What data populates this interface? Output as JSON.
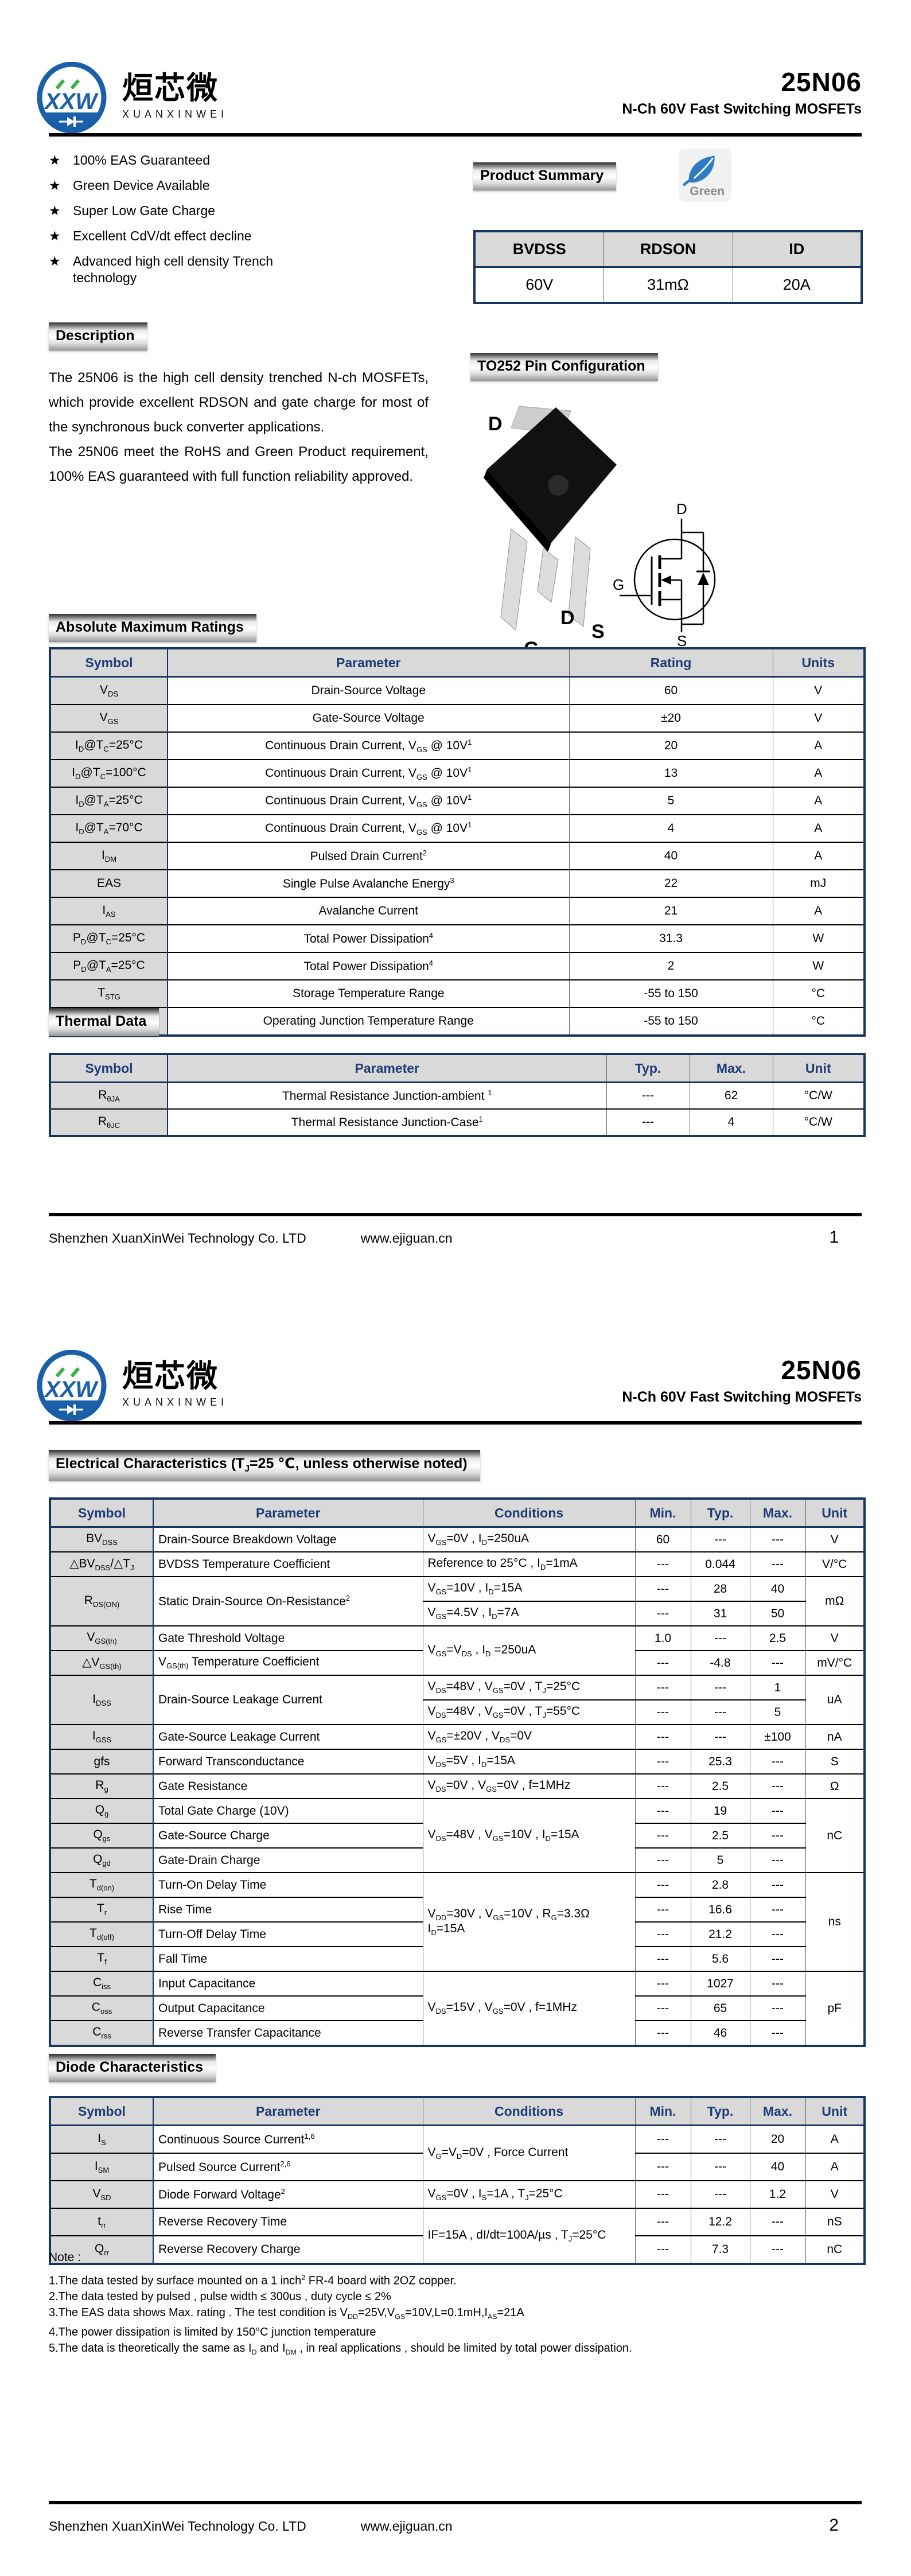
{
  "doc": {
    "brand": {
      "initials": "XXW",
      "cn": "烜芯微",
      "en": "XUANXINWEI"
    },
    "part": "25N06",
    "subtitle": "N-Ch 60V Fast Switching MOSFETs",
    "footer": {
      "company": "Shenzhen XuanXinWei Technology Co. LTD",
      "url": "www.ejiguan.cn",
      "page1": "1",
      "page2": "2"
    }
  },
  "page1": {
    "features": [
      "100% EAS Guaranteed",
      "Green Device Available",
      "Super Low Gate Charge",
      "Excellent CdV/dt effect decline",
      "Advanced high cell density Trench<br>technology"
    ],
    "product_summary": {
      "title": "Product Summary",
      "badge": "Green",
      "headers": [
        "BVDSS",
        "RDSON",
        "ID"
      ],
      "values": [
        "60V",
        "31mΩ",
        "20A"
      ]
    },
    "description": {
      "title": "Description",
      "paragraphs": [
        "The 25N06 is the high cell density trenched N-ch MOSFETs, which provide excellent RDSON and gate charge for most of the synchronous buck converter applications.",
        "The 25N06 meet the RoHS and Green Product requirement, 100% EAS guaranteed with full function reliability approved."
      ]
    },
    "pin_config": {
      "title": "TO252 Pin Configuration",
      "pkg_top_label": "D",
      "pkg_pin_labels": [
        "G",
        "D",
        "S"
      ],
      "sym_d": "D",
      "sym_g": "G",
      "sym_s": "S"
    },
    "abs_max": {
      "title": "Absolute Maximum Ratings",
      "headers": [
        "Symbol",
        "Parameter",
        "Rating",
        "Units"
      ],
      "rows": [
        [
          {
            "h": "V<sub>DS</sub>",
            "c": "sym"
          },
          {
            "h": "Drain-Source Voltage"
          },
          {
            "h": "60"
          },
          {
            "h": "V"
          }
        ],
        [
          {
            "h": "V<sub>GS</sub>",
            "c": "sym"
          },
          {
            "h": "Gate-Source Voltage"
          },
          {
            "h": "±20"
          },
          {
            "h": "V"
          }
        ],
        [
          {
            "h": "I<sub>D</sub>@T<sub>C</sub>=25°C",
            "c": "sym"
          },
          {
            "h": "Continuous Drain Current, V<sub>GS</sub> @ 10V<sup>1</sup>"
          },
          {
            "h": "20"
          },
          {
            "h": "A"
          }
        ],
        [
          {
            "h": "I<sub>D</sub>@T<sub>C</sub>=100°C",
            "c": "sym"
          },
          {
            "h": "Continuous Drain Current, V<sub>GS</sub> @ 10V<sup>1</sup>"
          },
          {
            "h": "13"
          },
          {
            "h": "A"
          }
        ],
        [
          {
            "h": "I<sub>D</sub>@T<sub>A</sub>=25°C",
            "c": "sym"
          },
          {
            "h": "Continuous Drain Current, V<sub>GS</sub> @ 10V<sup>1</sup>"
          },
          {
            "h": "5"
          },
          {
            "h": "A"
          }
        ],
        [
          {
            "h": "I<sub>D</sub>@T<sub>A</sub>=70°C",
            "c": "sym"
          },
          {
            "h": "Continuous Drain Current, V<sub>GS</sub> @ 10V<sup>1</sup>"
          },
          {
            "h": "4"
          },
          {
            "h": "A"
          }
        ],
        [
          {
            "h": "I<sub>DM</sub>",
            "c": "sym"
          },
          {
            "h": "Pulsed Drain Current<sup>2</sup>"
          },
          {
            "h": "40"
          },
          {
            "h": "A"
          }
        ],
        [
          {
            "h": "EAS",
            "c": "sym"
          },
          {
            "h": "Single Pulse Avalanche Energy<sup>3</sup>"
          },
          {
            "h": "22"
          },
          {
            "h": "mJ"
          }
        ],
        [
          {
            "h": "I<sub>AS</sub>",
            "c": "sym"
          },
          {
            "h": "Avalanche Current"
          },
          {
            "h": "21"
          },
          {
            "h": "A"
          }
        ],
        [
          {
            "h": "P<sub>D</sub>@T<sub>C</sub>=25°C",
            "c": "sym"
          },
          {
            "h": "Total Power Dissipation<sup>4</sup>"
          },
          {
            "h": "31.3"
          },
          {
            "h": "W"
          }
        ],
        [
          {
            "h": "P<sub>D</sub>@T<sub>A</sub>=25°C",
            "c": "sym"
          },
          {
            "h": "Total Power Dissipation<sup>4</sup>"
          },
          {
            "h": "2"
          },
          {
            "h": "W"
          }
        ],
        [
          {
            "h": "T<sub>STG</sub>",
            "c": "sym"
          },
          {
            "h": "Storage Temperature Range"
          },
          {
            "h": "-55 to 150"
          },
          {
            "h": "°C"
          }
        ],
        [
          {
            "h": "T<sub>J</sub>",
            "c": "sym"
          },
          {
            "h": "Operating Junction Temperature Range"
          },
          {
            "h": "-55 to 150"
          },
          {
            "h": "°C"
          }
        ]
      ]
    },
    "thermal": {
      "title": "Thermal Data",
      "headers": [
        "Symbol",
        "Parameter",
        "Typ.",
        "Max.",
        "Unit"
      ],
      "rows": [
        [
          {
            "h": "R<sub>θJA</sub>",
            "c": "sym"
          },
          {
            "h": "Thermal Resistance Junction-ambient <sup>1</sup>"
          },
          {
            "h": "---"
          },
          {
            "h": "62"
          },
          {
            "h": "°C/W"
          }
        ],
        [
          {
            "h": "R<sub>θJC</sub>",
            "c": "sym"
          },
          {
            "h": "Thermal Resistance Junction-Case<sup>1</sup>"
          },
          {
            "h": "---"
          },
          {
            "h": "4"
          },
          {
            "h": "°C/W"
          }
        ]
      ]
    }
  },
  "page2": {
    "elec": {
      "title": "Electrical Characteristics (T<sub>J</sub>=25 ℃, unless otherwise noted)",
      "headers": [
        "Symbol",
        "Parameter",
        "Conditions",
        "Min.",
        "Typ.",
        "Max.",
        "Unit"
      ],
      "rows": [
        [
          {
            "h": "BV<sub>DSS</sub>",
            "c": "sym"
          },
          {
            "h": "Drain-Source Breakdown Voltage",
            "c": "l"
          },
          {
            "h": "V<sub>GS</sub>=0V , I<sub>D</sub>=250uA",
            "c": "l"
          },
          {
            "h": "60"
          },
          {
            "h": "---"
          },
          {
            "h": "---"
          },
          {
            "h": "V"
          }
        ],
        [
          {
            "h": "△BV<sub>DSS</sub>/△T<sub>J</sub>",
            "c": "sym"
          },
          {
            "h": "BVDSS Temperature Coefficient",
            "c": "l"
          },
          {
            "h": "Reference to 25°C , I<sub>D</sub>=1mA",
            "c": "l"
          },
          {
            "h": "---"
          },
          {
            "h": "0.044"
          },
          {
            "h": "---"
          },
          {
            "h": "V/°C"
          }
        ],
        [
          {
            "h": "R<sub>DS(ON)</sub>",
            "c": "sym",
            "rs": 2
          },
          {
            "h": "Static Drain-Source On-Resistance<sup>2</sup>",
            "c": "l",
            "rs": 2
          },
          {
            "h": "V<sub>GS</sub>=10V , I<sub>D</sub>=15A",
            "c": "l"
          },
          {
            "h": "---"
          },
          {
            "h": "28"
          },
          {
            "h": "40"
          },
          {
            "h": "mΩ",
            "rs": 2
          }
        ],
        [
          {
            "h": "V<sub>GS</sub>=4.5V , I<sub>D</sub>=7A",
            "c": "l"
          },
          {
            "h": "---"
          },
          {
            "h": "31"
          },
          {
            "h": "50"
          }
        ],
        [
          {
            "h": "V<sub>GS(th)</sub>",
            "c": "sym"
          },
          {
            "h": "Gate Threshold Voltage",
            "c": "l"
          },
          {
            "h": "V<sub>GS</sub>=V<sub>DS</sub> , I<sub>D</sub> =250uA",
            "c": "l",
            "rs": 2
          },
          {
            "h": "1.0"
          },
          {
            "h": "---"
          },
          {
            "h": "2.5"
          },
          {
            "h": "V"
          }
        ],
        [
          {
            "h": "△V<sub>GS(th)</sub>",
            "c": "sym"
          },
          {
            "h": "V<sub>GS(th)</sub> Temperature Coefficient",
            "c": "l"
          },
          {
            "h": "---"
          },
          {
            "h": "-4.8"
          },
          {
            "h": "---"
          },
          {
            "h": "mV/°C"
          }
        ],
        [
          {
            "h": "I<sub>DSS</sub>",
            "c": "sym",
            "rs": 2
          },
          {
            "h": "Drain-Source Leakage Current",
            "c": "l",
            "rs": 2
          },
          {
            "h": "V<sub>DS</sub>=48V , V<sub>GS</sub>=0V , T<sub>J</sub>=25°C",
            "c": "l"
          },
          {
            "h": "---"
          },
          {
            "h": "---"
          },
          {
            "h": "1"
          },
          {
            "h": "uA",
            "rs": 2
          }
        ],
        [
          {
            "h": "V<sub>DS</sub>=48V , V<sub>GS</sub>=0V , T<sub>J</sub>=55°C",
            "c": "l"
          },
          {
            "h": "---"
          },
          {
            "h": "---"
          },
          {
            "h": "5"
          }
        ],
        [
          {
            "h": "I<sub>GSS</sub>",
            "c": "sym"
          },
          {
            "h": "Gate-Source Leakage Current",
            "c": "l"
          },
          {
            "h": "V<sub>GS</sub>=±20V , V<sub>DS</sub>=0V",
            "c": "l"
          },
          {
            "h": "---"
          },
          {
            "h": "---"
          },
          {
            "h": "±100"
          },
          {
            "h": "nA"
          }
        ],
        [
          {
            "h": "gfs",
            "c": "sym"
          },
          {
            "h": "Forward Transconductance",
            "c": "l"
          },
          {
            "h": "V<sub>DS</sub>=5V , I<sub>D</sub>=15A",
            "c": "l"
          },
          {
            "h": "---"
          },
          {
            "h": "25.3"
          },
          {
            "h": "---"
          },
          {
            "h": "S"
          }
        ],
        [
          {
            "h": "R<sub>g</sub>",
            "c": "sym"
          },
          {
            "h": "Gate Resistance",
            "c": "l"
          },
          {
            "h": "V<sub>DS</sub>=0V , V<sub>GS</sub>=0V , f=1MHz",
            "c": "l"
          },
          {
            "h": "---"
          },
          {
            "h": "2.5"
          },
          {
            "h": "---"
          },
          {
            "h": "Ω"
          }
        ],
        [
          {
            "h": "Q<sub>g</sub>",
            "c": "sym"
          },
          {
            "h": "Total Gate Charge (10V)",
            "c": "l"
          },
          {
            "h": "V<sub>DS</sub>=48V , V<sub>GS</sub>=10V , I<sub>D</sub>=15A",
            "c": "l",
            "rs": 3
          },
          {
            "h": "---"
          },
          {
            "h": "19"
          },
          {
            "h": "---"
          },
          {
            "h": "nC",
            "rs": 3
          }
        ],
        [
          {
            "h": "Q<sub>gs</sub>",
            "c": "sym"
          },
          {
            "h": "Gate-Source Charge",
            "c": "l"
          },
          {
            "h": "---"
          },
          {
            "h": "2.5"
          },
          {
            "h": "---"
          }
        ],
        [
          {
            "h": "Q<sub>gd</sub>",
            "c": "sym"
          },
          {
            "h": "Gate-Drain Charge",
            "c": "l"
          },
          {
            "h": "---"
          },
          {
            "h": "5"
          },
          {
            "h": "---"
          }
        ],
        [
          {
            "h": "T<sub>d(on)</sub>",
            "c": "sym"
          },
          {
            "h": "Turn-On Delay Time",
            "c": "l"
          },
          {
            "h": "V<sub>DD</sub>=30V , V<sub>GS</sub>=10V , R<sub>G</sub>=3.3Ω<br>I<sub>D</sub>=15A",
            "c": "l",
            "rs": 4
          },
          {
            "h": "---"
          },
          {
            "h": "2.8"
          },
          {
            "h": "---"
          },
          {
            "h": "ns",
            "rs": 4
          }
        ],
        [
          {
            "h": "T<sub>r</sub>",
            "c": "sym"
          },
          {
            "h": "Rise Time",
            "c": "l"
          },
          {
            "h": "---"
          },
          {
            "h": "16.6"
          },
          {
            "h": "---"
          }
        ],
        [
          {
            "h": "T<sub>d(off)</sub>",
            "c": "sym"
          },
          {
            "h": "Turn-Off Delay Time",
            "c": "l"
          },
          {
            "h": "---"
          },
          {
            "h": "21.2"
          },
          {
            "h": "---"
          }
        ],
        [
          {
            "h": "T<sub>f</sub>",
            "c": "sym"
          },
          {
            "h": "Fall Time",
            "c": "l"
          },
          {
            "h": "---"
          },
          {
            "h": "5.6"
          },
          {
            "h": "---"
          }
        ],
        [
          {
            "h": "C<sub>iss</sub>",
            "c": "sym"
          },
          {
            "h": "Input Capacitance",
            "c": "l"
          },
          {
            "h": "V<sub>DS</sub>=15V , V<sub>GS</sub>=0V , f=1MHz",
            "c": "l",
            "rs": 3
          },
          {
            "h": "---"
          },
          {
            "h": "1027"
          },
          {
            "h": "---"
          },
          {
            "h": "pF",
            "rs": 3
          }
        ],
        [
          {
            "h": "C<sub>oss</sub>",
            "c": "sym"
          },
          {
            "h": "Output Capacitance",
            "c": "l"
          },
          {
            "h": "---"
          },
          {
            "h": "65"
          },
          {
            "h": "---"
          }
        ],
        [
          {
            "h": "C<sub>rss</sub>",
            "c": "sym"
          },
          {
            "h": "Reverse Transfer Capacitance",
            "c": "l"
          },
          {
            "h": "---"
          },
          {
            "h": "46"
          },
          {
            "h": "---"
          }
        ]
      ]
    },
    "diode": {
      "title": "Diode Characteristics",
      "headers": [
        "Symbol",
        "Parameter",
        "Conditions",
        "Min.",
        "Typ.",
        "Max.",
        "Unit"
      ],
      "rows": [
        [
          {
            "h": "I<sub>S</sub>",
            "c": "sym"
          },
          {
            "h": "Continuous Source Current<sup>1,6</sup>",
            "c": "l"
          },
          {
            "h": "V<sub>G</sub>=V<sub>D</sub>=0V , Force Current",
            "c": "l",
            "rs": 2
          },
          {
            "h": "---"
          },
          {
            "h": "---"
          },
          {
            "h": "20"
          },
          {
            "h": "A"
          }
        ],
        [
          {
            "h": "I<sub>SM</sub>",
            "c": "sym"
          },
          {
            "h": "Pulsed Source Current<sup>2,6</sup>",
            "c": "l"
          },
          {
            "h": "---"
          },
          {
            "h": "---"
          },
          {
            "h": "40"
          },
          {
            "h": "A"
          }
        ],
        [
          {
            "h": "V<sub>SD</sub>",
            "c": "sym"
          },
          {
            "h": "Diode Forward Voltage<sup>2</sup>",
            "c": "l"
          },
          {
            "h": "V<sub>GS</sub>=0V , I<sub>S</sub>=1A , T<sub>J</sub>=25°C",
            "c": "l"
          },
          {
            "h": "---"
          },
          {
            "h": "---"
          },
          {
            "h": "1.2"
          },
          {
            "h": "V"
          }
        ],
        [
          {
            "h": "t<sub>rr</sub>",
            "c": "sym"
          },
          {
            "h": "Reverse Recovery Time",
            "c": "l"
          },
          {
            "h": "IF=15A , dI/dt=100A/µs , T<sub>J</sub>=25°C",
            "c": "l",
            "rs": 2
          },
          {
            "h": "---"
          },
          {
            "h": "12.2"
          },
          {
            "h": "---"
          },
          {
            "h": "nS"
          }
        ],
        [
          {
            "h": "Q<sub>rr</sub>",
            "c": "sym"
          },
          {
            "h": "Reverse Recovery Charge",
            "c": "l"
          },
          {
            "h": "---"
          },
          {
            "h": "7.3"
          },
          {
            "h": "---"
          },
          {
            "h": "nC"
          }
        ]
      ]
    },
    "notes": {
      "label": "Note :",
      "items": [
        "1.The data tested by surface mounted on a 1 inch<sup>2</sup> FR-4 board with 2OZ copper.",
        "2.The data tested by pulsed , pulse width ≤ 300us , duty cycle ≤ 2%",
        "3.The EAS data shows Max. rating . The test condition is V<sub>DD</sub>=25V,V<sub>GS</sub>=10V,L=0.1mH,I<sub>AS</sub>=21A",
        "4.The power dissipation is limited by 150°C  junction temperature",
        "5.The data is theoretically the same as I<sub>D</sub> and I<sub>DM</sub> , in real applications , should be limited by total power dissipation."
      ]
    }
  }
}
